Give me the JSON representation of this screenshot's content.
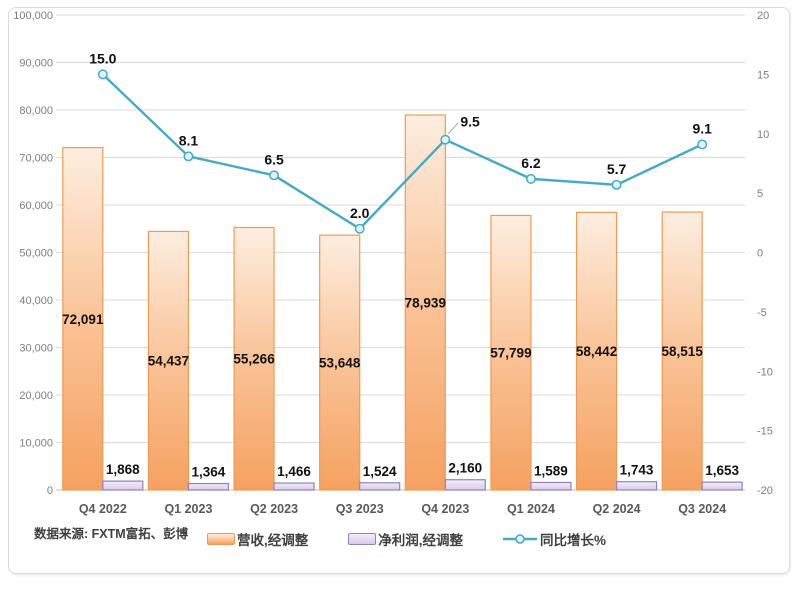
{
  "source_note": "数据来源: FXTM富拓、彭博",
  "legend": {
    "revenue": "营收,经调整",
    "profit": "净利润,经调整",
    "growth": "同比增长%"
  },
  "colors": {
    "revenue_fill_top": "#FDEEE0",
    "revenue_fill_mid": "#FAC397",
    "revenue_fill_bottom": "#F5A160",
    "revenue_border": "#EE9C55",
    "profit_fill_top": "#F2EDF8",
    "profit_fill_bottom": "#D8CBE9",
    "profit_border": "#9181BE",
    "growth_line": "#45AAC7",
    "marker_fill": "#E3F3F9",
    "gridline": "#D9D9D9",
    "axis_line": "#BFBFBF",
    "leader_line": "#A6A6A6",
    "tick_text": "#7F7F7F",
    "category_text": "#595959",
    "value_text": "#111111"
  },
  "chart_data": {
    "type": "bar",
    "subtype": "combo-bar-line",
    "title": "",
    "xlabel": "",
    "ylabel_left": "",
    "ylabel_right": "",
    "grid": true,
    "legend_position": "bottom",
    "categories": [
      "Q4 2022",
      "Q1 2023",
      "Q2 2023",
      "Q3 2023",
      "Q4 2023",
      "Q1 2024",
      "Q2 2024",
      "Q3 2024"
    ],
    "series": [
      {
        "name": "营收,经调整",
        "type": "bar",
        "axis": "left",
        "values": [
          72091,
          54437,
          55266,
          53648,
          78939,
          57799,
          58442,
          58515
        ],
        "labels": [
          "72,091",
          "54,437",
          "55,266",
          "53,648",
          "78,939",
          "57,799",
          "58,442",
          "58,515"
        ]
      },
      {
        "name": "净利润,经调整",
        "type": "bar",
        "axis": "left",
        "values": [
          1868,
          1364,
          1466,
          1524,
          2160,
          1589,
          1743,
          1653
        ],
        "labels": [
          "1,868",
          "1,364",
          "1,466",
          "1,524",
          "2,160",
          "1,589",
          "1,743",
          "1,653"
        ]
      },
      {
        "name": "同比增长%",
        "type": "line",
        "axis": "right",
        "values": [
          15.0,
          8.1,
          6.5,
          2.0,
          9.5,
          6.2,
          5.7,
          9.1
        ],
        "labels": [
          "15.0",
          "8.1",
          "6.5",
          "2.0",
          "9.5",
          "6.2",
          "5.7",
          "9.1"
        ],
        "callout_index": 4
      }
    ],
    "left_axis": {
      "min": 0,
      "max": 100000,
      "tick_labels": [
        "0",
        "10,000",
        "20,000",
        "30,000",
        "40,000",
        "50,000",
        "60,000",
        "70,000",
        "80,000",
        "90,000",
        "100,000"
      ]
    },
    "right_axis": {
      "min": -20,
      "max": 20,
      "tick_labels": [
        "-20",
        "-15",
        "-10",
        "-5",
        "0",
        "5",
        "10",
        "15",
        "20"
      ]
    }
  }
}
